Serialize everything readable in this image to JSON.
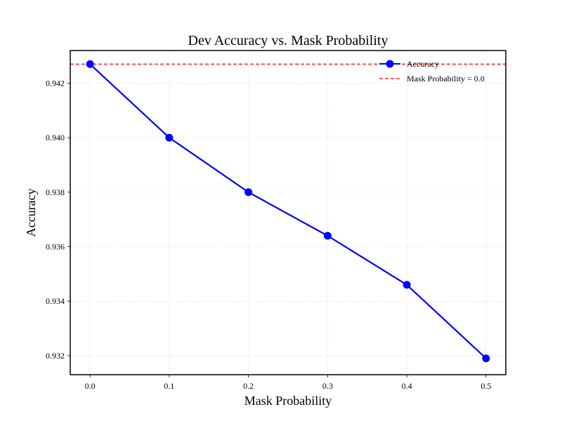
{
  "chart_data": {
    "type": "line",
    "title": "Dev Accuracy vs. Mask Probability",
    "xlabel": "Mask Probability",
    "ylabel": "Accuracy",
    "x": [
      0.0,
      0.1,
      0.2,
      0.3,
      0.4,
      0.5
    ],
    "xticks": [
      "0.0",
      "0.1",
      "0.2",
      "0.3",
      "0.4",
      "0.5"
    ],
    "yticks": [
      "0.932",
      "0.934",
      "0.936",
      "0.938",
      "0.940",
      "0.942"
    ],
    "xlim": [
      -0.025,
      0.525
    ],
    "ylim": [
      0.9313,
      0.9432
    ],
    "grid": true,
    "legend_position": "top-right",
    "series": [
      {
        "name": "Accuracy",
        "color": "#0000ff",
        "marker": "circle",
        "values": [
          0.9427,
          0.94,
          0.938,
          0.9364,
          0.9346,
          0.9319
        ]
      }
    ],
    "reference_line": {
      "label": "Mask Probability = 0.0",
      "value": 0.9427,
      "color": "#ff0000",
      "style": "dashed"
    }
  }
}
